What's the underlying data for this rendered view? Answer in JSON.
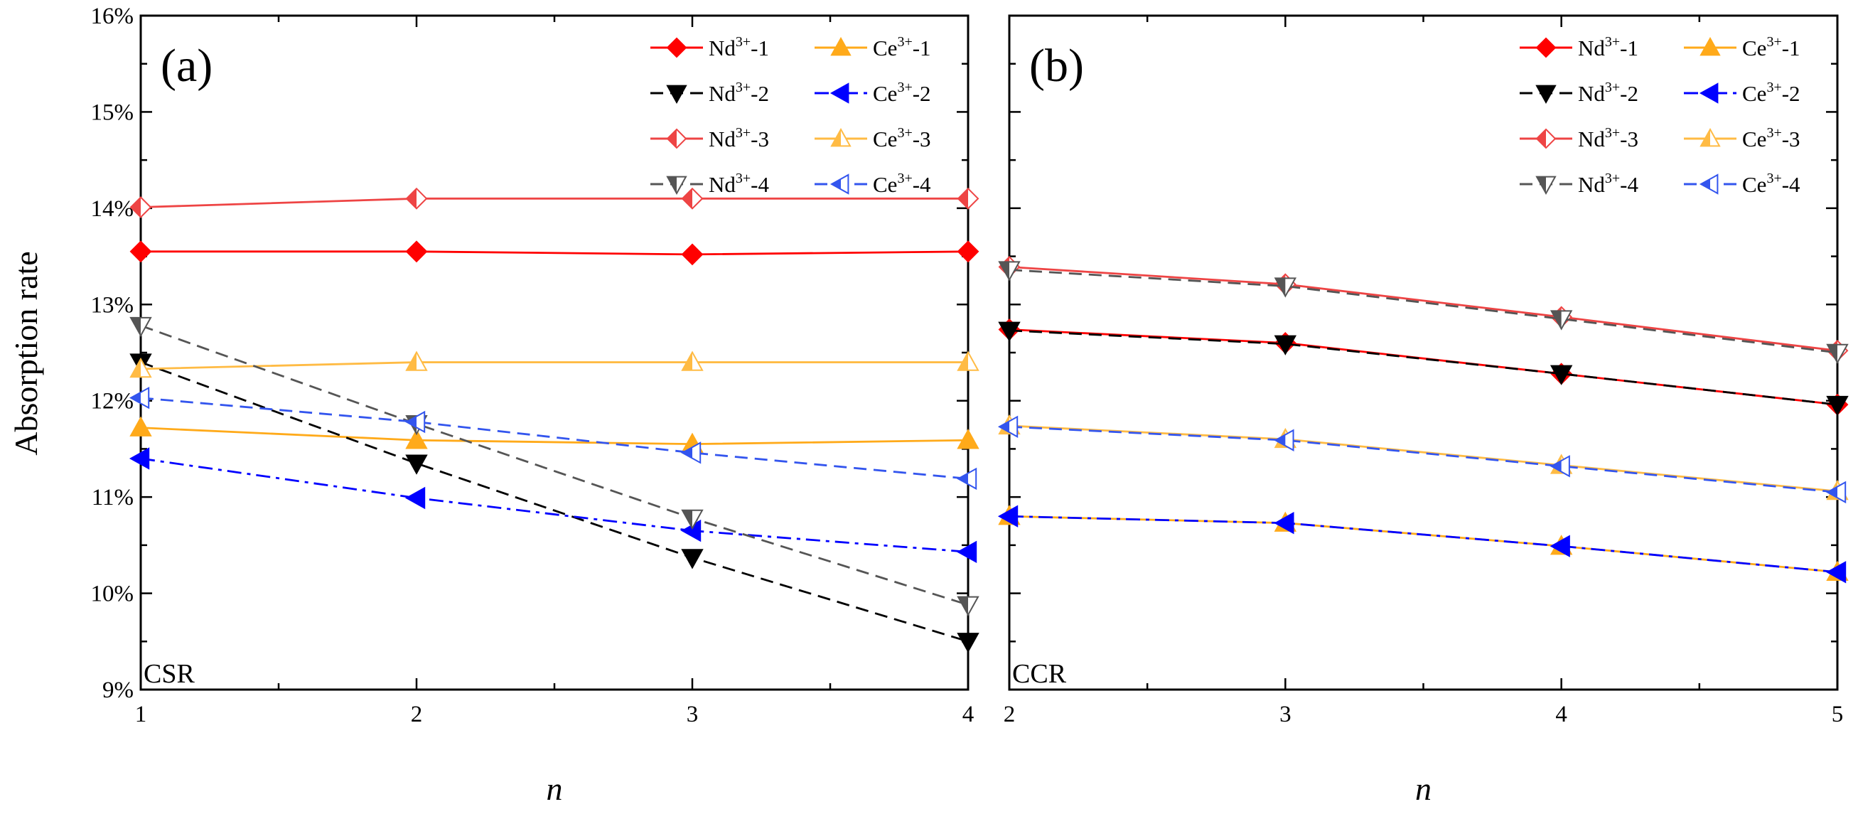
{
  "ylabel": "Absorption rate",
  "y_tick_labels": [
    "9%",
    "10%",
    "11%",
    "12%",
    "13%",
    "14%",
    "15%",
    "16%"
  ],
  "chart_data": [
    {
      "type": "line",
      "panel_label": "(a)",
      "corner_label": "CSR",
      "xlabel": "n",
      "x": [
        1,
        2,
        3,
        4
      ],
      "x_tick_labels": [
        "1",
        "2",
        "3",
        "4"
      ],
      "xlim": [
        1,
        4
      ],
      "ylim": [
        9,
        16
      ],
      "y_unit": "%",
      "legend_position": "top-right",
      "series": [
        {
          "name": "Nd3+-1",
          "base": "Nd",
          "sup": "3+",
          "suffix": "-1",
          "values": [
            13.55,
            13.55,
            13.52,
            13.55
          ],
          "color": "#ff0000",
          "dash": "solid",
          "marker": "diamond",
          "fill": "solid"
        },
        {
          "name": "Ce3+-1",
          "base": "Ce",
          "sup": "3+",
          "suffix": "-1",
          "values": [
            11.72,
            11.59,
            11.55,
            11.59
          ],
          "color": "#ffaa1a",
          "dash": "solid",
          "marker": "triangle-up",
          "fill": "solid"
        },
        {
          "name": "Nd3+-2",
          "base": "Nd",
          "sup": "3+",
          "suffix": "-2",
          "values": [
            12.4,
            11.35,
            10.37,
            9.5
          ],
          "color": "#000000",
          "dash": "dash",
          "marker": "triangle-down",
          "fill": "solid"
        },
        {
          "name": "Ce3+-2",
          "base": "Ce",
          "sup": "3+",
          "suffix": "-2",
          "values": [
            11.4,
            10.99,
            10.65,
            10.43
          ],
          "color": "#0000ff",
          "dash": "dashdot",
          "marker": "triangle-left",
          "fill": "solid"
        },
        {
          "name": "Nd3+-3",
          "base": "Nd",
          "sup": "3+",
          "suffix": "-3",
          "values": [
            14.01,
            14.1,
            14.1,
            14.1
          ],
          "color": "#ee4444",
          "dash": "solid",
          "marker": "diamond",
          "fill": "half"
        },
        {
          "name": "Ce3+-3",
          "base": "Ce",
          "sup": "3+",
          "suffix": "-3",
          "values": [
            12.33,
            12.4,
            12.4,
            12.4
          ],
          "color": "#ffbb44",
          "dash": "solid",
          "marker": "triangle-up",
          "fill": "half"
        },
        {
          "name": "Nd3+-4",
          "base": "Nd",
          "sup": "3+",
          "suffix": "-4",
          "values": [
            12.78,
            11.76,
            10.78,
            9.88
          ],
          "color": "#555555",
          "dash": "dash",
          "marker": "triangle-down",
          "fill": "half"
        },
        {
          "name": "Ce3+-4",
          "base": "Ce",
          "sup": "3+",
          "suffix": "-4",
          "values": [
            12.03,
            11.78,
            11.46,
            11.19
          ],
          "color": "#3355ee",
          "dash": "dash",
          "marker": "triangle-left",
          "fill": "half"
        }
      ]
    },
    {
      "type": "line",
      "panel_label": "(b)",
      "corner_label": "CCR",
      "xlabel": "n",
      "x": [
        2,
        3,
        4,
        5
      ],
      "x_tick_labels": [
        "2",
        "3",
        "4",
        "5"
      ],
      "xlim": [
        2,
        5
      ],
      "ylim": [
        9,
        16
      ],
      "y_unit": "%",
      "legend_position": "top-right",
      "series": [
        {
          "name": "Nd3+-1",
          "base": "Nd",
          "sup": "3+",
          "suffix": "-1",
          "values": [
            12.74,
            12.6,
            12.28,
            11.96
          ],
          "color": "#ff0000",
          "dash": "solid",
          "marker": "diamond",
          "fill": "solid"
        },
        {
          "name": "Ce3+-1",
          "base": "Ce",
          "sup": "3+",
          "suffix": "-1",
          "values": [
            10.8,
            10.73,
            10.49,
            10.22
          ],
          "color": "#ffaa1a",
          "dash": "solid",
          "marker": "triangle-up",
          "fill": "solid"
        },
        {
          "name": "Nd3+-2",
          "base": "Nd",
          "sup": "3+",
          "suffix": "-2",
          "values": [
            12.73,
            12.59,
            12.28,
            11.96
          ],
          "color": "#000000",
          "dash": "dash",
          "marker": "triangle-down",
          "fill": "solid"
        },
        {
          "name": "Ce3+-2",
          "base": "Ce",
          "sup": "3+",
          "suffix": "-2",
          "values": [
            10.8,
            10.73,
            10.49,
            10.22
          ],
          "color": "#0000ff",
          "dash": "dashdot",
          "marker": "triangle-left",
          "fill": "solid"
        },
        {
          "name": "Nd3+-3",
          "base": "Nd",
          "sup": "3+",
          "suffix": "-3",
          "values": [
            13.39,
            13.21,
            12.87,
            12.52
          ],
          "color": "#ee4444",
          "dash": "solid",
          "marker": "diamond",
          "fill": "half"
        },
        {
          "name": "Ce3+-3",
          "base": "Ce",
          "sup": "3+",
          "suffix": "-3",
          "values": [
            11.74,
            11.6,
            11.33,
            11.06
          ],
          "color": "#ffbb44",
          "dash": "solid",
          "marker": "triangle-up",
          "fill": "half"
        },
        {
          "name": "Nd3+-4",
          "base": "Nd",
          "sup": "3+",
          "suffix": "-4",
          "values": [
            13.36,
            13.19,
            12.85,
            12.5
          ],
          "color": "#555555",
          "dash": "dash",
          "marker": "triangle-down",
          "fill": "half"
        },
        {
          "name": "Ce3+-4",
          "base": "Ce",
          "sup": "3+",
          "suffix": "-4",
          "values": [
            11.73,
            11.59,
            11.32,
            11.05
          ],
          "color": "#3355ee",
          "dash": "dash",
          "marker": "triangle-left",
          "fill": "half"
        }
      ]
    }
  ]
}
